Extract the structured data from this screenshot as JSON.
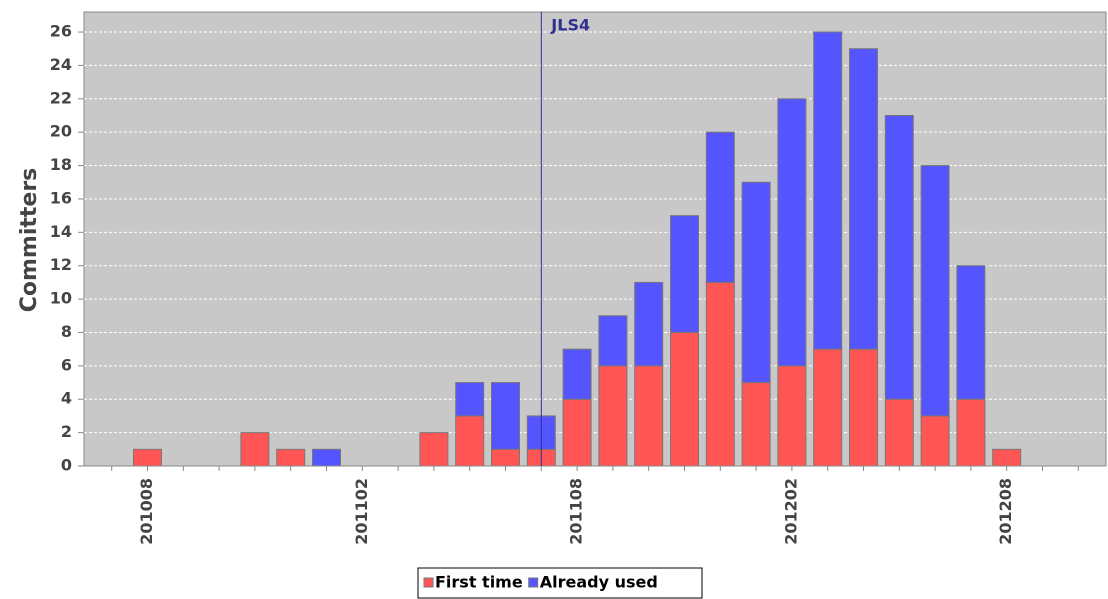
{
  "chart_data": {
    "type": "stacked_bar",
    "y_label": "Committers",
    "categories": [
      null,
      "201008",
      null,
      null,
      null,
      null,
      null,
      "201102",
      null,
      null,
      null,
      null,
      null,
      "201108",
      null,
      null,
      null,
      null,
      null,
      "201202",
      null,
      null,
      null,
      null,
      null,
      "201208",
      null,
      null
    ],
    "series": [
      {
        "name": "First time",
        "color": "#ff5555",
        "values": [
          0,
          1,
          0,
          0,
          2,
          1,
          0,
          0,
          0,
          2,
          3,
          1,
          1,
          4,
          6,
          6,
          8,
          11,
          5,
          6,
          7,
          7,
          4,
          3,
          4,
          1,
          0,
          0
        ]
      },
      {
        "name": "Already used",
        "color": "#5555ff",
        "values": [
          0,
          0,
          0,
          0,
          0,
          0,
          1,
          0,
          0,
          0,
          2,
          4,
          2,
          3,
          3,
          5,
          7,
          9,
          12,
          16,
          19,
          18,
          17,
          15,
          8,
          0,
          0,
          0
        ]
      }
    ],
    "markers": [
      {
        "label": "JLS4",
        "x": 12,
        "color": "#303090"
      }
    ],
    "ylim": [
      0,
      27.2
    ],
    "yticks": [
      0,
      2,
      4,
      6,
      8,
      10,
      12,
      14,
      16,
      18,
      20,
      22,
      24,
      26
    ],
    "grid": true,
    "legend": "bottom"
  }
}
